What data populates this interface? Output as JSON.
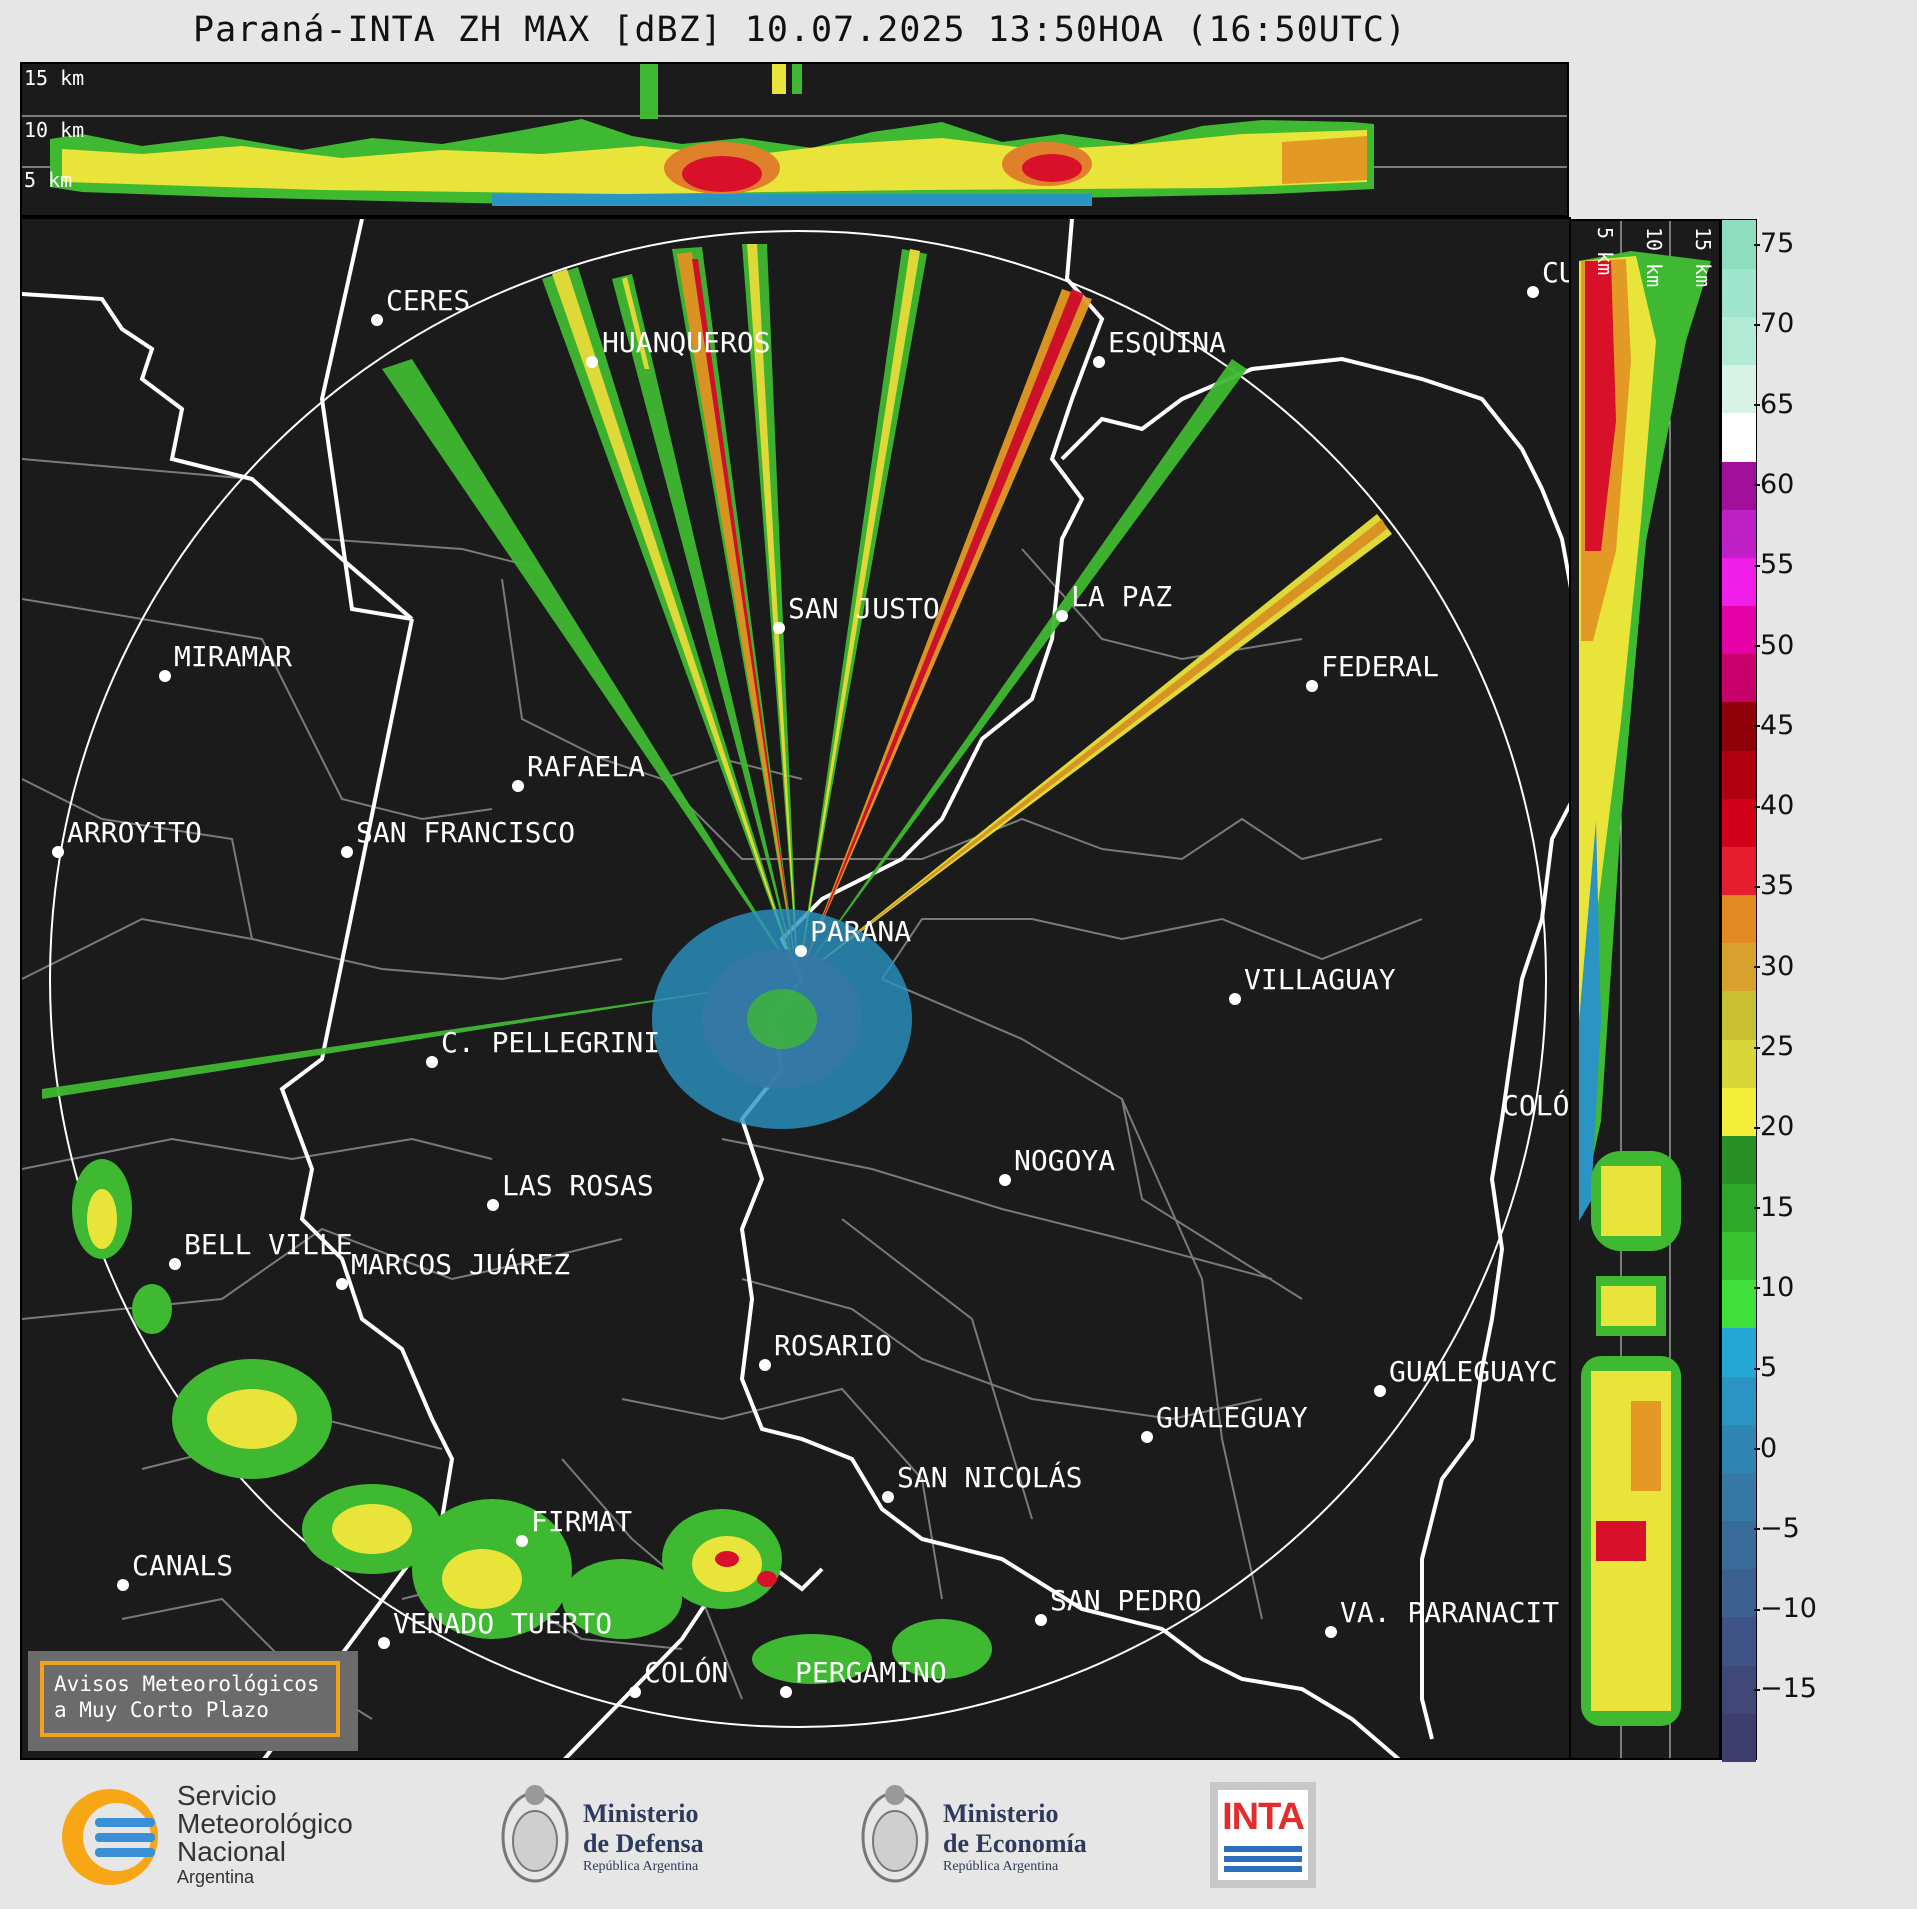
{
  "title": "Paraná-INTA ZH MAX [dBZ] 10.07.2025 13:50HOA (16:50UTC)",
  "top_panel": {
    "height_labels": [
      "15 km",
      "10 km",
      "5 km"
    ]
  },
  "right_panel": {
    "height_labels": [
      "5 km",
      "10 km",
      "15 km"
    ]
  },
  "cities": [
    {
      "name": "CERES"
    },
    {
      "name": "HUANQUEROS"
    },
    {
      "name": "ESQUINA"
    },
    {
      "name": "CU"
    },
    {
      "name": "SAN JUSTO"
    },
    {
      "name": "LA PAZ"
    },
    {
      "name": "MIRAMAR"
    },
    {
      "name": "FEDERAL"
    },
    {
      "name": "RAFAELA"
    },
    {
      "name": "ARROYITO"
    },
    {
      "name": "SAN FRANCISCO"
    },
    {
      "name": "PARANA"
    },
    {
      "name": "VILLAGUAY"
    },
    {
      "name": "C. PELLEGRINI"
    },
    {
      "name": "COLÓ"
    },
    {
      "name": "NOGOYA"
    },
    {
      "name": "LAS ROSAS"
    },
    {
      "name": "BELL VILLE"
    },
    {
      "name": "MARCOS JUÁREZ"
    },
    {
      "name": "ROSARIO"
    },
    {
      "name": "GUALEGUAYC"
    },
    {
      "name": "GUALEGUAY"
    },
    {
      "name": "SAN NICOLÁS"
    },
    {
      "name": "FIRMAT"
    },
    {
      "name": "CANALS"
    },
    {
      "name": "SAN PEDRO"
    },
    {
      "name": "VENADO TUERTO"
    },
    {
      "name": "VA. PARANACIT"
    },
    {
      "name": "COLÓN"
    },
    {
      "name": "PERGAMINO"
    }
  ],
  "colorbar": {
    "ticks": [
      "75",
      "70",
      "65",
      "60",
      "55",
      "50",
      "45",
      "40",
      "35",
      "30",
      "25",
      "20",
      "15",
      "10",
      "5",
      "0",
      "−5",
      "−10",
      "−15"
    ],
    "colors": [
      "#3d3d6e",
      "#40487a",
      "#3f5486",
      "#3c6090",
      "#3a6c9a",
      "#3678a6",
      "#2f86b4",
      "#2a94c2",
      "#24a8d6",
      "#3fe03a",
      "#38c431",
      "#2fa82a",
      "#288f24",
      "#f2ee3a",
      "#d8d63a",
      "#c9c031",
      "#d7a12c",
      "#e18a1f",
      "#e61e2e",
      "#d10018",
      "#b10010",
      "#8f0008",
      "#c8006b",
      "#e600a8",
      "#f01ee8",
      "#c020c8",
      "#a0109a",
      "#ffffff",
      "#d6f3e6",
      "#b2ecd6",
      "#9fe5cd",
      "#8ddebf"
    ]
  },
  "warning": {
    "line1": "Avisos Meteorológicos",
    "line2": "a Muy Corto Plazo"
  },
  "footer": {
    "smn": {
      "line1": "Servicio",
      "line2": "Meteorológico",
      "line3": "Nacional",
      "line4": "Argentina"
    },
    "defensa": {
      "line1": "Ministerio",
      "line2": "de Defensa",
      "line3": "República Argentina"
    },
    "economia": {
      "line1": "Ministerio",
      "line2": "de Economía",
      "line3": "República Argentina"
    },
    "inta": {
      "label": "INTA"
    }
  }
}
